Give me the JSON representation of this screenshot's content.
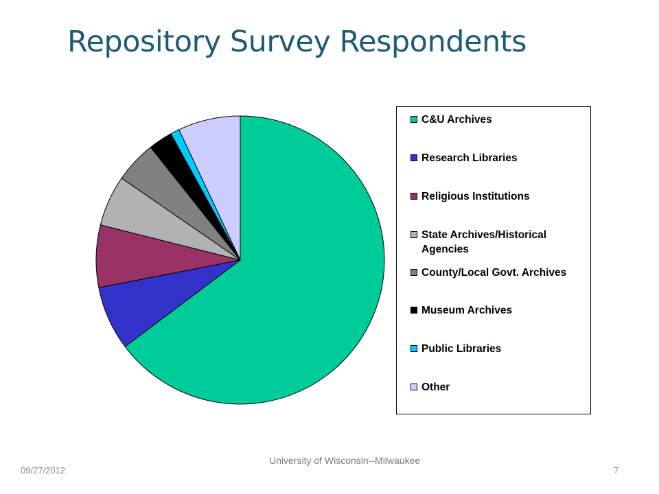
{
  "slide": {
    "title": "Repository Survey Respondents",
    "footer_date": "09/27/2012",
    "footer_center": "University of Wisconsin--Milwaukee",
    "page_number": "7"
  },
  "chart_data": {
    "type": "pie",
    "legend_position": "right",
    "start_angle": "top",
    "direction": "clockwise",
    "slices": [
      {
        "label": "C&U Archives",
        "value": 64.8,
        "color": "#00cc99"
      },
      {
        "label": "Research Libraries",
        "value": 7.2,
        "color": "#3333cc"
      },
      {
        "label": "Religious Institutions",
        "value": 7.0,
        "color": "#993366"
      },
      {
        "label": "State Archives/Historical Agencies",
        "value": 5.7,
        "color": "#b2b2b2"
      },
      {
        "label": "County/Local Govt. Archives",
        "value": 4.7,
        "color": "#808080"
      },
      {
        "label": "Museum Archives",
        "value": 2.7,
        "color": "#000000"
      },
      {
        "label": "Public Libraries",
        "value": 1.0,
        "color": "#00ccff"
      },
      {
        "label": "Other",
        "value": 7.0,
        "color": "#ccccff"
      }
    ]
  }
}
